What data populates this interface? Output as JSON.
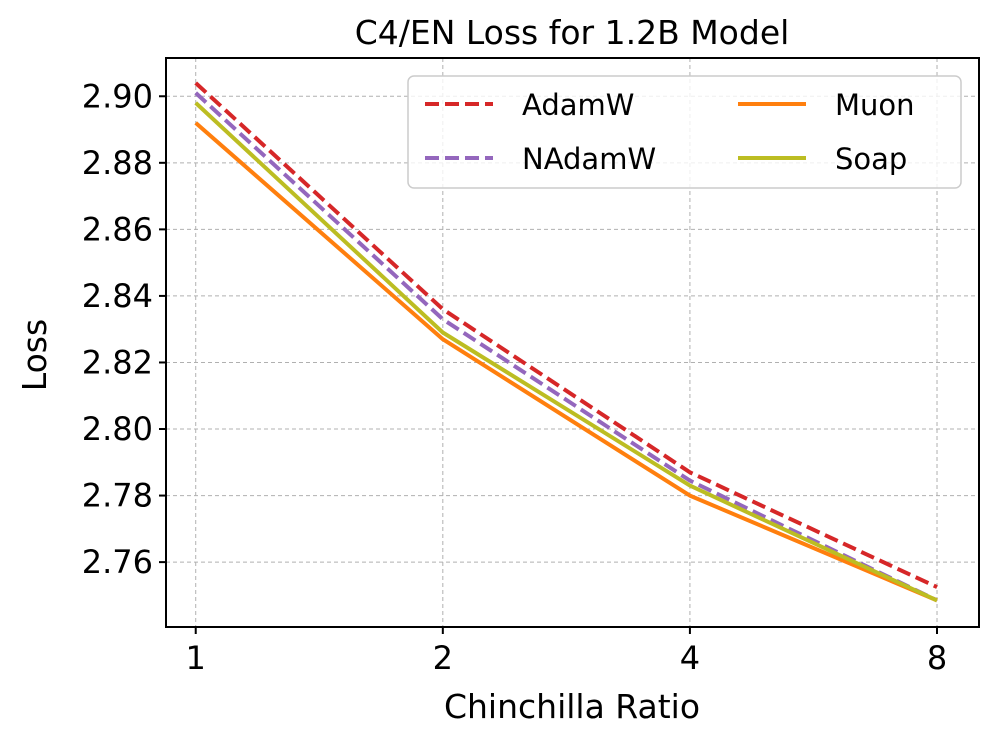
{
  "chart_data": {
    "type": "line",
    "title": "C4/EN Loss for 1.2B Model",
    "xlabel": "Chinchilla Ratio",
    "ylabel": "Loss",
    "x": [
      1,
      2,
      4,
      8
    ],
    "xscale": "log2",
    "xticks": [
      1,
      2,
      4,
      8
    ],
    "xtick_labels": [
      "1",
      "2",
      "4",
      "8"
    ],
    "xlim": [
      0.92,
      9.0
    ],
    "ylim": [
      2.7405,
      2.9115
    ],
    "yticks": [
      2.76,
      2.78,
      2.8,
      2.82,
      2.84,
      2.86,
      2.88,
      2.9
    ],
    "ytick_labels": [
      "2.76",
      "2.78",
      "2.80",
      "2.82",
      "2.84",
      "2.86",
      "2.88",
      "2.90"
    ],
    "grid": true,
    "legend": {
      "placement": "top-right",
      "columns": 2
    },
    "series": [
      {
        "name": "AdamW",
        "values": [
          2.904,
          2.836,
          2.787,
          2.7525
        ],
        "color": "#d62728",
        "style": "dashed"
      },
      {
        "name": "NAdamW",
        "values": [
          2.901,
          2.833,
          2.7845,
          2.7485
        ],
        "color": "#9467bd",
        "style": "dashed"
      },
      {
        "name": "Muon",
        "values": [
          2.892,
          2.827,
          2.78,
          2.7485
        ],
        "color": "#ff7f0e",
        "style": "solid"
      },
      {
        "name": "Soap",
        "values": [
          2.898,
          2.829,
          2.783,
          2.7485
        ],
        "color": "#bcbd22",
        "style": "solid"
      }
    ],
    "legend_order": [
      "AdamW",
      "Muon",
      "NAdamW",
      "Soap"
    ]
  }
}
